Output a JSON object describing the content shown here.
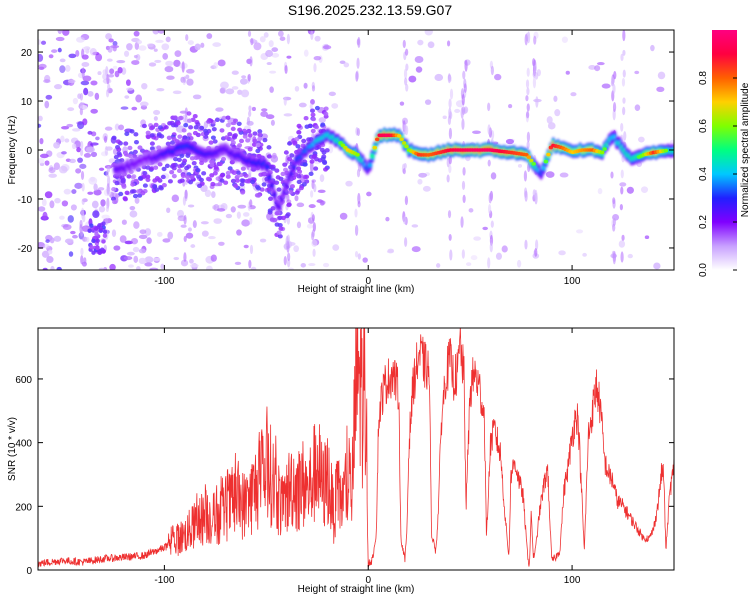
{
  "title": "S196.2025.232.13.59.G07",
  "chart_data": [
    {
      "type": "heatmap",
      "title": "S196.2025.232.13.59.G07",
      "xlabel": "Height of straight line (km)",
      "ylabel": "Frequency (Hz)",
      "xlim": [
        -162,
        150
      ],
      "ylim": [
        -24.5,
        24.5
      ],
      "xticks": [
        -100,
        0,
        100
      ],
      "yticks": [
        -20,
        -10,
        0,
        10,
        20
      ],
      "colorbar": {
        "label": "Normalized spectral amplitude",
        "range": [
          0,
          1
        ],
        "ticks": [
          "0.0",
          "0.2",
          "0.4",
          "0.6",
          "0.8"
        ],
        "colors": [
          "#ffffff",
          "#c8a0ff",
          "#8000ff",
          "#2020ff",
          "#00c8ff",
          "#00ff80",
          "#80ff00",
          "#ffd000",
          "#ff6000",
          "#ff0040",
          "#ff0080"
        ]
      },
      "ridge": {
        "name": "dominant frequency",
        "x": [
          -122,
          -110,
          -100,
          -90,
          -80,
          -70,
          -60,
          -50,
          -44,
          -40,
          -35,
          -30,
          -25,
          -20,
          -15,
          -10,
          -5,
          0,
          5,
          10,
          15,
          20,
          25,
          30,
          40,
          50,
          60,
          70,
          78,
          85,
          90,
          95,
          100,
          105,
          110,
          115,
          120,
          125,
          130,
          135,
          140,
          148
        ],
        "y": [
          -4,
          -2,
          -1,
          1,
          -1,
          0,
          -2,
          -3,
          -12,
          -7,
          -2,
          0,
          2,
          3,
          2,
          0,
          -1,
          -4,
          3,
          3,
          3,
          0,
          -1,
          -1,
          0,
          0,
          0,
          -0.5,
          -1,
          -5,
          1,
          0.5,
          -0.5,
          0,
          0,
          -0.5,
          3,
          0,
          -2,
          -1,
          -0.5,
          0
        ],
        "amplitude": [
          0.2,
          0.15,
          0.25,
          0.3,
          0.25,
          0.2,
          0.25,
          0.3,
          0.2,
          0.2,
          0.3,
          0.35,
          0.45,
          0.45,
          0.5,
          0.7,
          0.6,
          0.3,
          0.9,
          0.95,
          0.7,
          0.6,
          0.85,
          0.8,
          0.9,
          0.95,
          0.95,
          0.85,
          0.8,
          0.3,
          0.9,
          0.8,
          0.7,
          0.75,
          0.8,
          0.6,
          0.4,
          0.5,
          0.5,
          0.6,
          0.85,
          0.5
        ]
      }
    },
    {
      "type": "line",
      "xlabel": "Height of straight line (km)",
      "ylabel": "SNR (10 * v/v)",
      "xlim": [
        -162,
        150
      ],
      "ylim": [
        0,
        760
      ],
      "xticks": [
        -100,
        0,
        100
      ],
      "yticks": [
        0,
        200,
        400,
        600
      ],
      "series": [
        {
          "name": "SNR",
          "color": "#ee3030",
          "x": [
            -162,
            -150,
            -140,
            -130,
            -120,
            -110,
            -100,
            -95,
            -90,
            -85,
            -80,
            -75,
            -70,
            -65,
            -60,
            -55,
            -52,
            -50,
            -48,
            -45,
            -42,
            -40,
            -37,
            -35,
            -32,
            -30,
            -27,
            -25,
            -22,
            -20,
            -17,
            -15,
            -12,
            -10,
            -8,
            -6,
            -5,
            -4,
            -3,
            -1,
            0,
            2,
            4,
            5,
            6,
            8,
            10,
            12,
            15,
            16,
            18,
            19,
            20,
            22,
            25,
            28,
            30,
            31,
            33,
            34,
            36,
            38,
            40,
            42,
            44,
            45,
            46,
            47,
            48,
            50,
            52,
            55,
            57,
            58,
            60,
            62,
            65,
            67,
            69,
            70,
            72,
            74,
            76,
            78,
            79,
            80,
            81,
            82,
            84,
            86,
            88,
            90,
            92,
            94,
            96,
            98,
            100,
            102,
            103,
            105,
            106,
            108,
            110,
            112,
            114,
            116,
            118,
            120,
            122,
            125,
            128,
            130,
            132,
            135,
            138,
            140,
            142,
            144,
            145,
            146,
            148,
            150
          ],
          "y": [
            20,
            30,
            25,
            35,
            40,
            45,
            70,
            90,
            110,
            140,
            170,
            160,
            190,
            220,
            200,
            260,
            270,
            330,
            300,
            250,
            190,
            230,
            280,
            250,
            270,
            240,
            290,
            330,
            250,
            300,
            180,
            230,
            220,
            280,
            240,
            560,
            630,
            600,
            560,
            500,
            20,
            30,
            120,
            450,
            520,
            580,
            600,
            620,
            560,
            100,
            30,
            130,
            400,
            580,
            680,
            640,
            620,
            120,
            60,
            130,
            480,
            610,
            660,
            600,
            620,
            720,
            660,
            600,
            200,
            560,
            620,
            560,
            480,
            100,
            400,
            440,
            360,
            180,
            40,
            300,
            340,
            280,
            230,
            60,
            10,
            180,
            40,
            60,
            180,
            260,
            320,
            30,
            40,
            60,
            250,
            320,
            420,
            490,
            470,
            200,
            60,
            420,
            500,
            580,
            500,
            340,
            300,
            280,
            220,
            200,
            170,
            150,
            130,
            100,
            100,
            130,
            200,
            310,
            300,
            60,
            250,
            320
          ]
        }
      ]
    }
  ]
}
